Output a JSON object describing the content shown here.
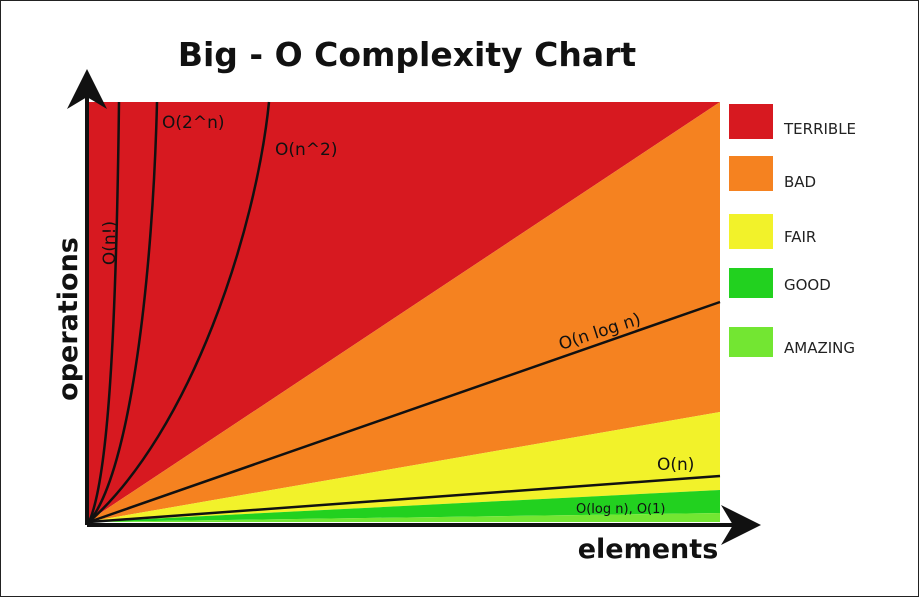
{
  "chart_data": {
    "type": "area",
    "title": "Big - O  Complexity Chart",
    "xlabel": "elements",
    "ylabel": "operations",
    "regions": [
      {
        "name": "TERRIBLE",
        "color": "#d71920"
      },
      {
        "name": "BAD",
        "color": "#f58220"
      },
      {
        "name": "FAIR",
        "color": "#f2f22a"
      },
      {
        "name": "GOOD",
        "color": "#22d11f"
      },
      {
        "name": "AMAZING",
        "color": "#73e632"
      }
    ],
    "legend": {
      "position": "right",
      "items": [
        "TERRIBLE",
        "BAD",
        "FAIR",
        "GOOD",
        "AMAZING"
      ]
    },
    "curves": [
      {
        "name": "O(n!)",
        "label": "O(n!)"
      },
      {
        "name": "O(2^n)",
        "label": "O(2^n)"
      },
      {
        "name": "O(n^2)",
        "label": "O(n^2)"
      },
      {
        "name": "O(n log n)",
        "label": "O(n log n)"
      },
      {
        "name": "O(n)",
        "label": "O(n)"
      },
      {
        "name": "O(log n), O(1)",
        "label": "O(log n), O(1)"
      }
    ],
    "axis_ticks": "none",
    "grid": false
  }
}
